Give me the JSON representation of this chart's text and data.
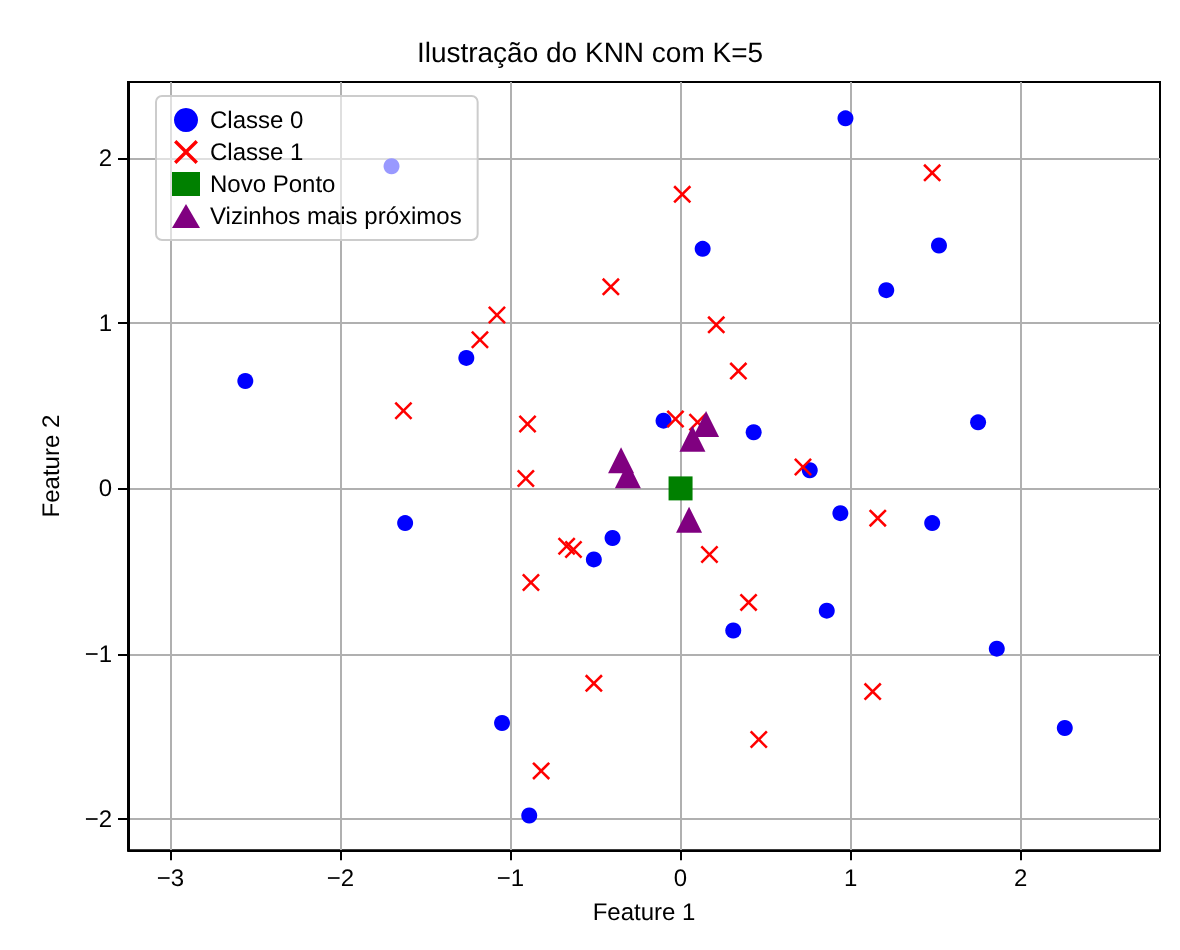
{
  "chart_data": {
    "type": "scatter",
    "title": "Ilustração do KNN com K=5",
    "xlabel": "Feature 1",
    "ylabel": "Feature 2",
    "xlim": [
      -3.25,
      2.82
    ],
    "ylim": [
      -2.19,
      2.46
    ],
    "xticks": [
      -3,
      -2,
      -1,
      0,
      1,
      2
    ],
    "yticks": [
      -2,
      -1,
      0,
      1,
      2
    ],
    "grid": true,
    "legend": "top left",
    "series": [
      {
        "name": "Classe 0",
        "color": "#0000ff",
        "marker": "circle",
        "x": [
          -1.7,
          0.97,
          0.13,
          1.52,
          1.21,
          -2.56,
          -1.26,
          -0.1,
          0.43,
          1.75,
          0.76,
          0.94,
          1.48,
          -1.62,
          -0.4,
          -0.51,
          0.86,
          0.31,
          1.86,
          -1.05,
          2.26,
          -0.89
        ],
        "values": [
          1.95,
          2.24,
          1.45,
          1.47,
          1.2,
          0.65,
          0.79,
          0.41,
          0.34,
          0.4,
          0.11,
          -0.15,
          -0.21,
          -0.21,
          -0.3,
          -0.43,
          -0.74,
          -0.86,
          -0.97,
          -1.42,
          -1.45,
          -1.98
        ]
      },
      {
        "name": "Classe 1",
        "color": "#ff0000",
        "marker": "cross",
        "x": [
          1.48,
          0.01,
          -0.41,
          -1.08,
          -1.18,
          0.21,
          0.34,
          -1.63,
          -0.9,
          -0.03,
          0.1,
          -0.91,
          0.72,
          1.16,
          -0.67,
          -0.63,
          0.17,
          0.4,
          -0.88,
          -0.51,
          1.13,
          0.46,
          -0.82
        ],
        "values": [
          1.91,
          1.78,
          1.22,
          1.05,
          0.9,
          0.99,
          0.71,
          0.47,
          0.39,
          0.42,
          0.4,
          0.06,
          0.13,
          -0.18,
          -0.35,
          -0.37,
          -0.4,
          -0.69,
          -0.57,
          -1.18,
          -1.23,
          -1.52,
          -1.71
        ]
      },
      {
        "name": "Novo Ponto",
        "color": "#008000",
        "marker": "square",
        "x": [
          0
        ],
        "values": [
          0
        ]
      },
      {
        "name": "Vizinhos mais próximos",
        "color": "#800080",
        "marker": "triangle",
        "x": [
          -0.35,
          -0.31,
          0.15,
          0.07,
          0.05
        ],
        "values": [
          0.17,
          0.08,
          0.39,
          0.3,
          -0.19
        ]
      }
    ]
  }
}
